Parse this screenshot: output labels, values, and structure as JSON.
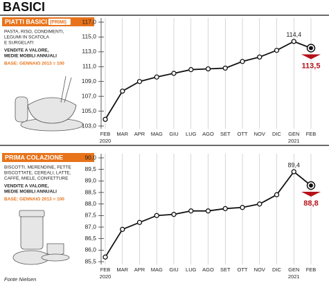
{
  "title": "BASICI",
  "source": "Fonte Nielsen",
  "chart_data": [
    {
      "type": "line",
      "title": "PIATTI BASICI",
      "title_tag": "(PRIMI)",
      "description": [
        "PASTA, RISO, CONDIMENTI,",
        "LEGUMI IN SCATOLA",
        "E SURGELATI"
      ],
      "notes": [
        "VENDITE A VALORE,",
        "MEDIE MOBILI ANNUALI"
      ],
      "base": "BASE: GENNAIO 2013 = 100",
      "categories": [
        "FEB",
        "MAR",
        "APR",
        "MAG",
        "GIU",
        "LUG",
        "AGO",
        "SET",
        "OTT",
        "NOV",
        "DIC",
        "GEN",
        "FEB"
      ],
      "years": [
        "2020",
        null,
        null,
        null,
        null,
        null,
        null,
        null,
        null,
        null,
        null,
        "2021",
        null
      ],
      "values": [
        103.9,
        107.7,
        109.0,
        109.6,
        110.1,
        110.6,
        110.7,
        110.8,
        111.7,
        112.3,
        113.2,
        114.4,
        113.5
      ],
      "value_labels": [
        null,
        null,
        null,
        null,
        null,
        null,
        null,
        null,
        null,
        null,
        null,
        "114,4",
        "113,5"
      ],
      "color": "#111111",
      "highlight_color": "#b5121b",
      "panel_color": "#e8731a",
      "ylim": [
        103,
        117
      ],
      "yticks": [
        {
          "value": 103,
          "label": "103,0"
        },
        {
          "value": 105,
          "label": "105,0"
        },
        {
          "value": 107,
          "label": "107,0"
        },
        {
          "value": 109,
          "label": "109,0"
        },
        {
          "value": 111,
          "label": "111,0"
        },
        {
          "value": 113,
          "label": "113,0"
        },
        {
          "value": 115,
          "label": "115,0"
        },
        {
          "value": 117,
          "label": "117,0"
        }
      ]
    },
    {
      "type": "line",
      "title": "PRIMA COLAZIONE",
      "description": [
        "BISCOTTI, MERENDINE, FETTE",
        "BISCOTTATE, CEREALI, LATTE,",
        "CAFFÈ, MIELE, CONFETTURE"
      ],
      "notes": [
        "VENDITE A VALORE,",
        "MEDIE MOBILI ANNUALI"
      ],
      "base": "BASE: GENNAIO 2013 = 100",
      "categories": [
        "FEB",
        "MAR",
        "APR",
        "MAG",
        "GIU",
        "LUG",
        "AGO",
        "SET",
        "OTT",
        "NOV",
        "DIC",
        "GEN",
        "FEB"
      ],
      "years": [
        "2020",
        null,
        null,
        null,
        null,
        null,
        null,
        null,
        null,
        null,
        null,
        "2021",
        null
      ],
      "values": [
        85.7,
        86.9,
        87.2,
        87.5,
        87.55,
        87.7,
        87.7,
        87.8,
        87.85,
        88.0,
        88.4,
        89.4,
        88.8
      ],
      "value_labels": [
        null,
        null,
        null,
        null,
        null,
        null,
        null,
        null,
        null,
        null,
        null,
        "89,4",
        "88,8"
      ],
      "color": "#111111",
      "highlight_color": "#b5121b",
      "panel_color": "#e8731a",
      "ylim": [
        85.5,
        90.0
      ],
      "yticks": [
        {
          "value": 85.5,
          "label": "85,5"
        },
        {
          "value": 86.0,
          "label": "86,0"
        },
        {
          "value": 86.5,
          "label": "86,5"
        },
        {
          "value": 87.0,
          "label": "87,0"
        },
        {
          "value": 87.5,
          "label": "87,5"
        },
        {
          "value": 88.0,
          "label": "88,0"
        },
        {
          "value": 88.5,
          "label": "88,5"
        },
        {
          "value": 89.0,
          "label": "89,0"
        },
        {
          "value": 89.5,
          "label": "89,5"
        },
        {
          "value": 90.0,
          "label": "90,0"
        }
      ]
    }
  ]
}
